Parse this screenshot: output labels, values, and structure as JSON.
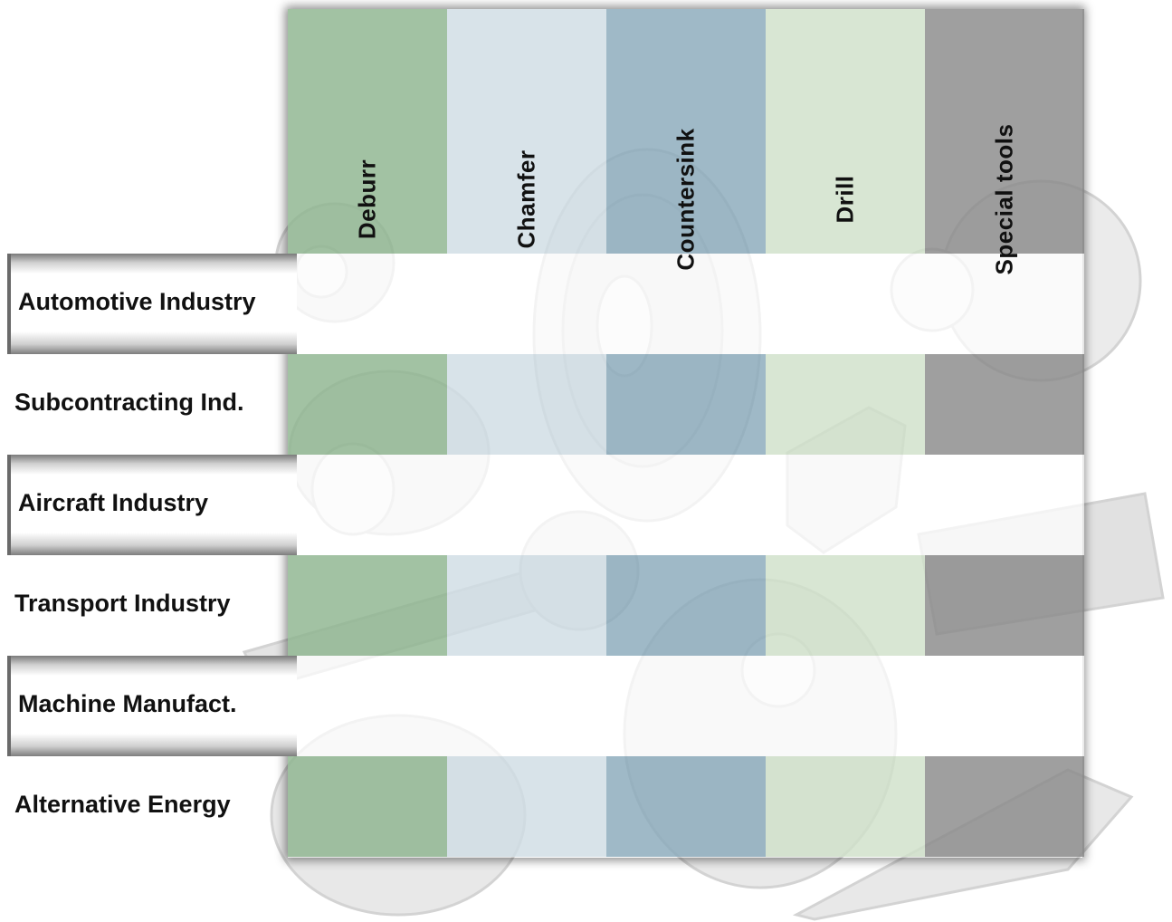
{
  "columns": [
    {
      "label": "Deburr",
      "color": "#8db58f"
    },
    {
      "label": "Chamfer",
      "color": "#cfdde4"
    },
    {
      "label": "Countersink",
      "color": "#8aaabb"
    },
    {
      "label": "Drill",
      "color": "#cfe0c9"
    },
    {
      "label": "Special tools",
      "color": "#8a8a8a"
    }
  ],
  "rows": [
    {
      "label": "Automotive Industry"
    },
    {
      "label": "Subcontracting Ind."
    },
    {
      "label": "Aircraft Industry"
    },
    {
      "label": "Transport Industry"
    },
    {
      "label": "Machine Manufact."
    },
    {
      "label": "Alternative Energy"
    }
  ]
}
